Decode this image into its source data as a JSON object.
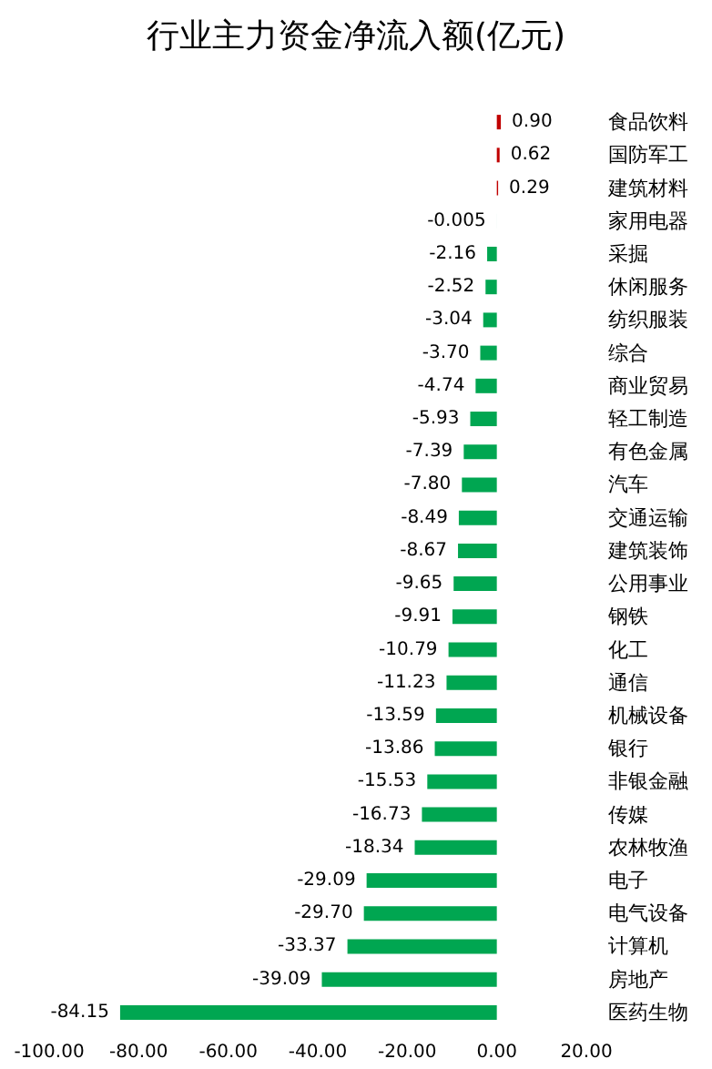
{
  "chart_data": {
    "type": "bar",
    "orientation": "horizontal",
    "title": "行业主力资金净流入额(亿元)",
    "categories": [
      "食品饮料",
      "国防军工",
      "建筑材料",
      "家用电器",
      "采掘",
      "休闲服务",
      "纺织服装",
      "综合",
      "商业贸易",
      "轻工制造",
      "有色金属",
      "汽车",
      "交通运输",
      "建筑装饰",
      "公用事业",
      "钢铁",
      "化工",
      "通信",
      "机械设备",
      "银行",
      "非银金融",
      "传媒",
      "农林牧渔",
      "电子",
      "电气设备",
      "计算机",
      "房地产",
      "医药生物"
    ],
    "values": [
      0.9,
      0.62,
      0.29,
      -0.005,
      -2.16,
      -2.52,
      -3.04,
      -3.7,
      -4.74,
      -5.93,
      -7.39,
      -7.8,
      -8.49,
      -8.67,
      -9.65,
      -9.91,
      -10.79,
      -11.23,
      -13.59,
      -13.86,
      -15.53,
      -16.73,
      -18.34,
      -29.09,
      -29.7,
      -33.37,
      -39.09,
      -84.15
    ],
    "value_labels": [
      "0.90",
      "0.62",
      "0.29",
      "-0.005",
      "-2.16",
      "-2.52",
      "-3.04",
      "-3.70",
      "-4.74",
      "-5.93",
      "-7.39",
      "-7.80",
      "-8.49",
      "-8.67",
      "-9.65",
      "-9.91",
      "-10.79",
      "-11.23",
      "-13.59",
      "-13.86",
      "-15.53",
      "-16.73",
      "-18.34",
      "-29.09",
      "-29.70",
      "-33.37",
      "-39.09",
      "-84.15"
    ],
    "colors": [
      "#c00000",
      "#c00000",
      "#c00000",
      "#00a651",
      "#00a651",
      "#00a651",
      "#00a651",
      "#00a651",
      "#00a651",
      "#00a651",
      "#00a651",
      "#00a651",
      "#00a651",
      "#00a651",
      "#00a651",
      "#00a651",
      "#00a651",
      "#00a651",
      "#00a651",
      "#00a651",
      "#00a651",
      "#00a651",
      "#00a651",
      "#00a651",
      "#00a651",
      "#00a651",
      "#00a651",
      "#00a651"
    ],
    "xlim": [
      -100,
      20
    ],
    "xticks": [
      {
        "value": -100,
        "label": "-100.00"
      },
      {
        "value": -80,
        "label": "-80.00"
      },
      {
        "value": -60,
        "label": "-60.00"
      },
      {
        "value": -40,
        "label": "-40.00"
      },
      {
        "value": -20,
        "label": "-20.00"
      },
      {
        "value": 0,
        "label": "0.00"
      },
      {
        "value": 20,
        "label": "20.00"
      }
    ],
    "grid": false
  }
}
